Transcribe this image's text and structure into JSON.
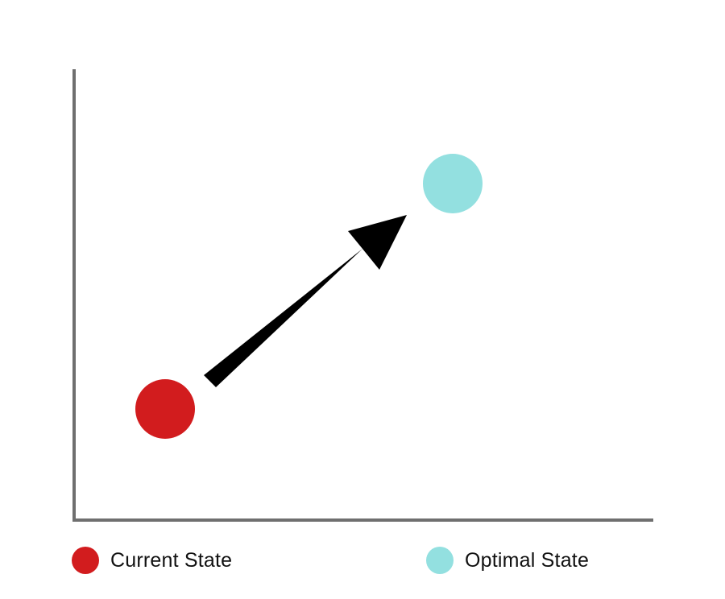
{
  "colors": {
    "axis": "#6f6f6f",
    "current": "#d21c1e",
    "optimal": "#93e0e0",
    "arrow": "#000000",
    "background": "#ffffff"
  },
  "points": {
    "current": {
      "label": "Current State",
      "color_key": "current"
    },
    "optimal": {
      "label": "Optimal State",
      "color_key": "optimal"
    }
  },
  "arrow": {
    "from": "current",
    "to": "optimal"
  },
  "legend": [
    {
      "label": "Current State",
      "color_key": "current"
    },
    {
      "label": "Optimal State",
      "color_key": "optimal"
    }
  ]
}
